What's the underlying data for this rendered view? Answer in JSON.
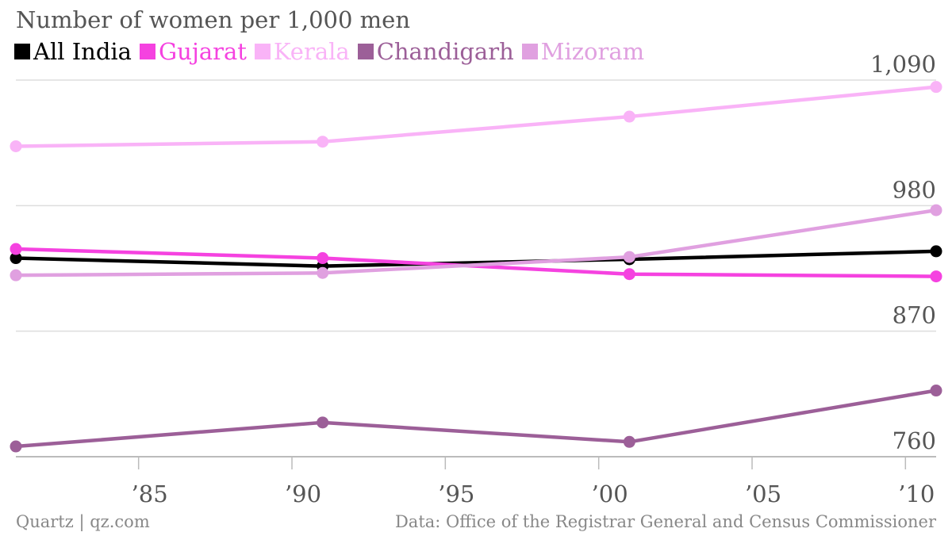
{
  "chart_data": {
    "type": "line",
    "title": "Number of women per 1,000 men",
    "x": [
      1981,
      1991,
      2001,
      2011
    ],
    "x_ticks": [
      1985,
      1990,
      1995,
      2000,
      2005,
      2010
    ],
    "x_tick_labels": [
      "’85",
      "’90",
      "’95",
      "’00",
      "’05",
      "’10"
    ],
    "y_ticks": [
      760,
      870,
      980,
      1090
    ],
    "y_tick_labels": [
      "760",
      "870",
      "980",
      "1,090"
    ],
    "ylim": [
      750,
      1100
    ],
    "xlim": [
      1981,
      2011
    ],
    "grid": true,
    "legend": "top-left",
    "series": [
      {
        "name": "All India",
        "color": "#000000",
        "values": [
          934,
          927,
          933,
          940
        ]
      },
      {
        "name": "Gujarat",
        "color": "#f542e0",
        "values": [
          942,
          934,
          920,
          918
        ]
      },
      {
        "name": "Kerala",
        "color": "#f9b3f7",
        "values": [
          1032,
          1036,
          1058,
          1084
        ]
      },
      {
        "name": "Chandigarh",
        "color": "#9c5f98",
        "values": [
          769,
          790,
          773,
          818
        ]
      },
      {
        "name": "Mizoram",
        "color": "#e0a0e0",
        "values": [
          919,
          921,
          935,
          976
        ]
      }
    ]
  },
  "footer": {
    "source": "Quartz | qz.com",
    "data_credit": "Data: Office of the Registrar General and Census Commissioner"
  }
}
